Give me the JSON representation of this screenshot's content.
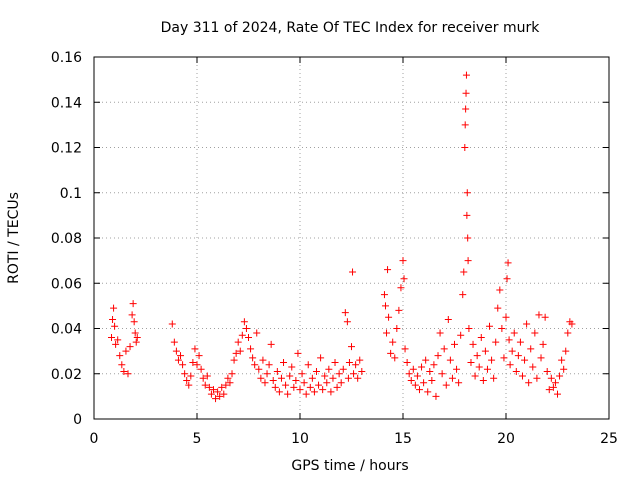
{
  "chart_data": {
    "type": "scatter",
    "title": "Day 311 of 2024, Rate Of TEC Index for receiver murk",
    "xlabel": "GPS time / hours",
    "ylabel": "ROTI / TECUs",
    "xlim": [
      0,
      25
    ],
    "ylim": [
      0,
      0.16
    ],
    "xticks": [
      0,
      5,
      10,
      15,
      20,
      25
    ],
    "xtick_labels": [
      "0",
      "5",
      "10",
      "15",
      "20",
      "25"
    ],
    "yticks": [
      0,
      0.02,
      0.04,
      0.06,
      0.08,
      0.1,
      0.12,
      0.14,
      0.16
    ],
    "ytick_labels": [
      "0",
      "0.02",
      "0.04",
      "0.06",
      "0.08",
      "0.1",
      "0.12",
      "0.14",
      "0.16"
    ],
    "grid": true,
    "marker": "+",
    "marker_color": "#ff0000",
    "series": [
      {
        "name": "ROTI",
        "color": "#ff0000",
        "points": [
          [
            0.85,
            0.036
          ],
          [
            0.9,
            0.044
          ],
          [
            0.95,
            0.049
          ],
          [
            1.0,
            0.041
          ],
          [
            1.05,
            0.033
          ],
          [
            1.15,
            0.035
          ],
          [
            1.25,
            0.028
          ],
          [
            1.35,
            0.024
          ],
          [
            1.45,
            0.021
          ],
          [
            1.55,
            0.03
          ],
          [
            1.65,
            0.02
          ],
          [
            1.75,
            0.032
          ],
          [
            1.85,
            0.046
          ],
          [
            1.9,
            0.051
          ],
          [
            1.95,
            0.043
          ],
          [
            2.0,
            0.038
          ],
          [
            2.05,
            0.034
          ],
          [
            2.1,
            0.036
          ],
          [
            3.8,
            0.042
          ],
          [
            3.9,
            0.034
          ],
          [
            4.0,
            0.03
          ],
          [
            4.1,
            0.026
          ],
          [
            4.2,
            0.028
          ],
          [
            4.3,
            0.024
          ],
          [
            4.4,
            0.02
          ],
          [
            4.5,
            0.017
          ],
          [
            4.6,
            0.015
          ],
          [
            4.7,
            0.019
          ],
          [
            4.8,
            0.025
          ],
          [
            4.9,
            0.031
          ],
          [
            5.0,
            0.024
          ],
          [
            5.1,
            0.028
          ],
          [
            5.2,
            0.022
          ],
          [
            5.3,
            0.018
          ],
          [
            5.4,
            0.015
          ],
          [
            5.5,
            0.019
          ],
          [
            5.6,
            0.014
          ],
          [
            5.7,
            0.011
          ],
          [
            5.8,
            0.013
          ],
          [
            5.9,
            0.009
          ],
          [
            6.0,
            0.012
          ],
          [
            6.1,
            0.01
          ],
          [
            6.2,
            0.014
          ],
          [
            6.3,
            0.011
          ],
          [
            6.4,
            0.015
          ],
          [
            6.5,
            0.018
          ],
          [
            6.6,
            0.016
          ],
          [
            6.7,
            0.02
          ],
          [
            6.8,
            0.026
          ],
          [
            6.9,
            0.029
          ],
          [
            7.0,
            0.034
          ],
          [
            7.1,
            0.03
          ],
          [
            7.2,
            0.037
          ],
          [
            7.3,
            0.043
          ],
          [
            7.4,
            0.04
          ],
          [
            7.5,
            0.036
          ],
          [
            7.6,
            0.031
          ],
          [
            7.7,
            0.027
          ],
          [
            7.8,
            0.024
          ],
          [
            7.9,
            0.038
          ],
          [
            8.0,
            0.022
          ],
          [
            8.1,
            0.018
          ],
          [
            8.2,
            0.026
          ],
          [
            8.3,
            0.016
          ],
          [
            8.4,
            0.02
          ],
          [
            8.5,
            0.024
          ],
          [
            8.6,
            0.033
          ],
          [
            8.7,
            0.017
          ],
          [
            8.8,
            0.014
          ],
          [
            8.9,
            0.021
          ],
          [
            9.0,
            0.012
          ],
          [
            9.1,
            0.018
          ],
          [
            9.2,
            0.025
          ],
          [
            9.3,
            0.015
          ],
          [
            9.4,
            0.011
          ],
          [
            9.5,
            0.019
          ],
          [
            9.6,
            0.023
          ],
          [
            9.7,
            0.014
          ],
          [
            9.8,
            0.017
          ],
          [
            9.9,
            0.029
          ],
          [
            10.0,
            0.013
          ],
          [
            10.1,
            0.02
          ],
          [
            10.2,
            0.016
          ],
          [
            10.3,
            0.011
          ],
          [
            10.4,
            0.024
          ],
          [
            10.5,
            0.014
          ],
          [
            10.6,
            0.018
          ],
          [
            10.7,
            0.012
          ],
          [
            10.8,
            0.021
          ],
          [
            10.9,
            0.015
          ],
          [
            11.0,
            0.027
          ],
          [
            11.1,
            0.013
          ],
          [
            11.2,
            0.019
          ],
          [
            11.3,
            0.016
          ],
          [
            11.4,
            0.022
          ],
          [
            11.5,
            0.012
          ],
          [
            11.6,
            0.018
          ],
          [
            11.7,
            0.025
          ],
          [
            11.8,
            0.014
          ],
          [
            11.9,
            0.02
          ],
          [
            12.0,
            0.016
          ],
          [
            12.1,
            0.022
          ],
          [
            12.2,
            0.047
          ],
          [
            12.3,
            0.043
          ],
          [
            12.35,
            0.018
          ],
          [
            12.4,
            0.025
          ],
          [
            12.5,
            0.032
          ],
          [
            12.55,
            0.065
          ],
          [
            12.6,
            0.02
          ],
          [
            12.7,
            0.024
          ],
          [
            12.8,
            0.018
          ],
          [
            12.9,
            0.026
          ],
          [
            13.0,
            0.021
          ],
          [
            14.1,
            0.055
          ],
          [
            14.15,
            0.05
          ],
          [
            14.2,
            0.038
          ],
          [
            14.25,
            0.066
          ],
          [
            14.3,
            0.045
          ],
          [
            14.4,
            0.029
          ],
          [
            14.5,
            0.034
          ],
          [
            14.6,
            0.027
          ],
          [
            14.7,
            0.04
          ],
          [
            14.8,
            0.048
          ],
          [
            14.9,
            0.058
          ],
          [
            15.0,
            0.07
          ],
          [
            15.05,
            0.062
          ],
          [
            15.1,
            0.031
          ],
          [
            15.2,
            0.025
          ],
          [
            15.3,
            0.02
          ],
          [
            15.4,
            0.017
          ],
          [
            15.5,
            0.022
          ],
          [
            15.6,
            0.015
          ],
          [
            15.7,
            0.019
          ],
          [
            15.8,
            0.013
          ],
          [
            15.9,
            0.023
          ],
          [
            16.0,
            0.016
          ],
          [
            16.1,
            0.026
          ],
          [
            16.2,
            0.012
          ],
          [
            16.3,
            0.021
          ],
          [
            16.4,
            0.017
          ],
          [
            16.5,
            0.024
          ],
          [
            16.6,
            0.01
          ],
          [
            16.7,
            0.028
          ],
          [
            16.8,
            0.038
          ],
          [
            16.9,
            0.02
          ],
          [
            17.0,
            0.031
          ],
          [
            17.1,
            0.015
          ],
          [
            17.2,
            0.044
          ],
          [
            17.3,
            0.026
          ],
          [
            17.4,
            0.018
          ],
          [
            17.5,
            0.033
          ],
          [
            17.6,
            0.022
          ],
          [
            17.7,
            0.016
          ],
          [
            17.8,
            0.037
          ],
          [
            17.9,
            0.055
          ],
          [
            17.95,
            0.065
          ],
          [
            18.0,
            0.12
          ],
          [
            18.02,
            0.13
          ],
          [
            18.04,
            0.137
          ],
          [
            18.06,
            0.144
          ],
          [
            18.08,
            0.152
          ],
          [
            18.1,
            0.09
          ],
          [
            18.12,
            0.1
          ],
          [
            18.14,
            0.08
          ],
          [
            18.16,
            0.07
          ],
          [
            18.2,
            0.04
          ],
          [
            18.3,
            0.025
          ],
          [
            18.4,
            0.033
          ],
          [
            18.5,
            0.019
          ],
          [
            18.6,
            0.028
          ],
          [
            18.7,
            0.023
          ],
          [
            18.8,
            0.036
          ],
          [
            18.9,
            0.017
          ],
          [
            19.0,
            0.03
          ],
          [
            19.1,
            0.022
          ],
          [
            19.2,
            0.041
          ],
          [
            19.3,
            0.026
          ],
          [
            19.4,
            0.018
          ],
          [
            19.5,
            0.034
          ],
          [
            19.6,
            0.049
          ],
          [
            19.7,
            0.057
          ],
          [
            19.8,
            0.04
          ],
          [
            19.9,
            0.027
          ],
          [
            20.0,
            0.045
          ],
          [
            20.05,
            0.062
          ],
          [
            20.1,
            0.069
          ],
          [
            20.15,
            0.035
          ],
          [
            20.2,
            0.024
          ],
          [
            20.3,
            0.03
          ],
          [
            20.4,
            0.038
          ],
          [
            20.5,
            0.021
          ],
          [
            20.6,
            0.028
          ],
          [
            20.7,
            0.034
          ],
          [
            20.8,
            0.019
          ],
          [
            20.9,
            0.026
          ],
          [
            21.0,
            0.042
          ],
          [
            21.1,
            0.016
          ],
          [
            21.2,
            0.031
          ],
          [
            21.3,
            0.023
          ],
          [
            21.4,
            0.038
          ],
          [
            21.5,
            0.018
          ],
          [
            21.6,
            0.046
          ],
          [
            21.7,
            0.027
          ],
          [
            21.8,
            0.033
          ],
          [
            21.9,
            0.045
          ],
          [
            22.0,
            0.021
          ],
          [
            22.1,
            0.013
          ],
          [
            22.2,
            0.018
          ],
          [
            22.3,
            0.014
          ],
          [
            22.4,
            0.016
          ],
          [
            22.5,
            0.011
          ],
          [
            22.6,
            0.019
          ],
          [
            22.7,
            0.026
          ],
          [
            22.8,
            0.022
          ],
          [
            22.9,
            0.03
          ],
          [
            23.0,
            0.038
          ],
          [
            23.1,
            0.043
          ],
          [
            23.2,
            0.042
          ]
        ]
      }
    ]
  }
}
